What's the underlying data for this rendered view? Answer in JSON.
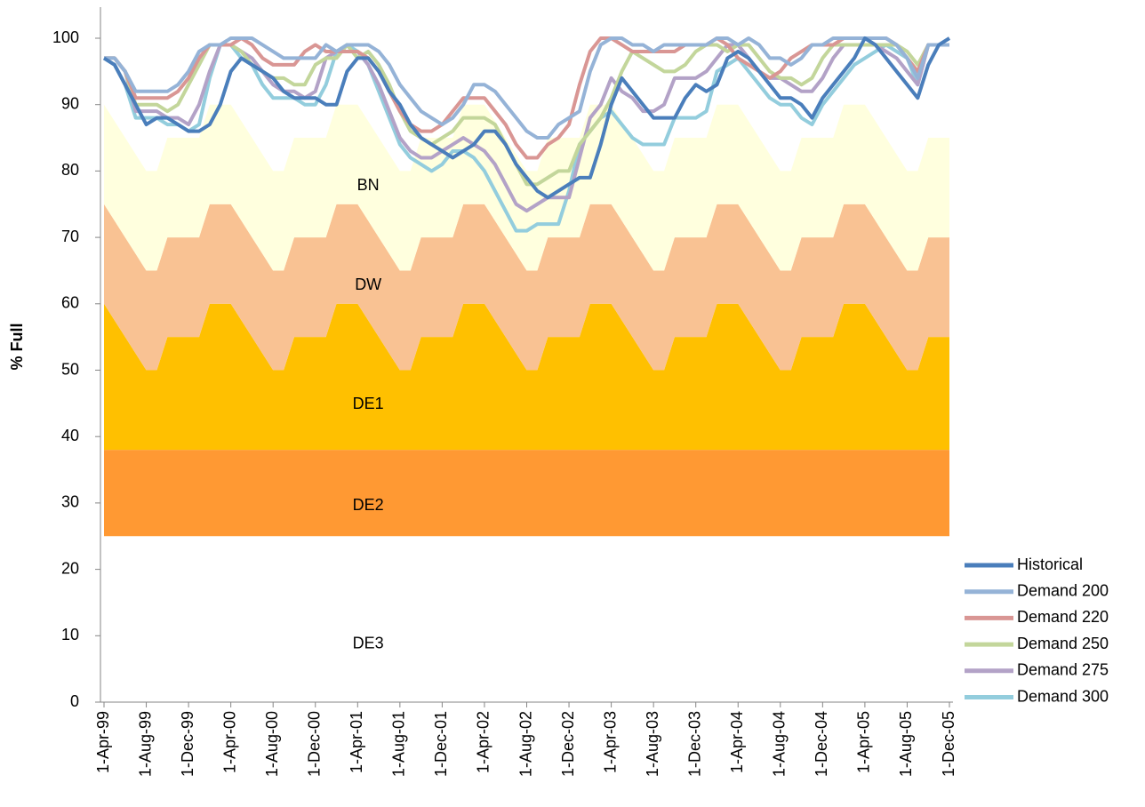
{
  "chart_data": {
    "type": "line",
    "ylabel": "% Full",
    "ylim": [
      0,
      100
    ],
    "yticks": [
      0,
      10,
      20,
      30,
      40,
      50,
      60,
      70,
      80,
      90,
      100
    ],
    "legend": "lower right",
    "categories": [
      "1-Apr-99",
      null,
      null,
      null,
      "1-Aug-99",
      null,
      null,
      null,
      "1-Dec-99",
      null,
      null,
      null,
      "1-Apr-00",
      null,
      null,
      null,
      "1-Aug-00",
      null,
      null,
      null,
      "1-Dec-00",
      null,
      null,
      null,
      "1-Apr-01",
      null,
      null,
      null,
      "1-Aug-01",
      null,
      null,
      null,
      "1-Dec-01",
      null,
      null,
      null,
      "1-Apr-02",
      null,
      null,
      null,
      "1-Aug-02",
      null,
      null,
      null,
      "1-Dec-02",
      null,
      null,
      null,
      "1-Apr-03",
      null,
      null,
      null,
      "1-Aug-03",
      null,
      null,
      null,
      "1-Dec-03",
      null,
      null,
      null,
      "1-Apr-04",
      null,
      null,
      null,
      "1-Aug-04",
      null,
      null,
      null,
      "1-Dec-04",
      null,
      null,
      null,
      "1-Apr-05",
      null,
      null,
      null,
      "1-Aug-05",
      null,
      null,
      null,
      "1-Dec-05"
    ],
    "bands": [
      {
        "name": "DE3",
        "color": "#ffffff",
        "values": [
          25,
          25,
          25,
          25,
          25,
          25,
          25,
          25,
          25,
          25,
          25,
          25,
          25,
          25,
          25,
          25,
          25,
          25,
          25,
          25,
          25,
          25,
          25,
          25,
          25,
          25,
          25,
          25,
          25,
          25,
          25,
          25,
          25,
          25,
          25,
          25,
          25,
          25,
          25,
          25,
          25,
          25,
          25,
          25,
          25,
          25,
          25,
          25,
          25,
          25,
          25,
          25,
          25,
          25,
          25,
          25,
          25,
          25,
          25,
          25,
          25,
          25,
          25,
          25,
          25,
          25,
          25,
          25,
          25,
          25,
          25,
          25,
          25,
          25,
          25,
          25,
          25,
          25,
          25,
          25,
          25
        ]
      },
      {
        "name": "DE2",
        "color": "#ff9933",
        "values": [
          13,
          13,
          13,
          13,
          13,
          13,
          13,
          13,
          13,
          13,
          13,
          13,
          13,
          13,
          13,
          13,
          13,
          13,
          13,
          13,
          13,
          13,
          13,
          13,
          13,
          13,
          13,
          13,
          13,
          13,
          13,
          13,
          13,
          13,
          13,
          13,
          13,
          13,
          13,
          13,
          13,
          13,
          13,
          13,
          13,
          13,
          13,
          13,
          13,
          13,
          13,
          13,
          13,
          13,
          13,
          13,
          13,
          13,
          13,
          13,
          13,
          13,
          13,
          13,
          13,
          13,
          13,
          13,
          13,
          13,
          13,
          13,
          13,
          13,
          13,
          13,
          13,
          13,
          13,
          13,
          13
        ]
      },
      {
        "name": "DE1",
        "color": "#ffc000",
        "values": [
          22,
          19.5,
          17,
          14.5,
          12,
          12,
          17,
          17,
          17,
          17,
          22,
          22,
          22,
          19.5,
          17,
          14.5,
          12,
          12,
          17,
          17,
          17,
          17,
          22,
          22,
          22,
          19.5,
          17,
          14.5,
          12,
          12,
          17,
          17,
          17,
          17,
          22,
          22,
          22,
          19.5,
          17,
          14.5,
          12,
          12,
          17,
          17,
          17,
          17,
          22,
          22,
          22,
          19.5,
          17,
          14.5,
          12,
          12,
          17,
          17,
          17,
          17,
          22,
          22,
          22,
          19.5,
          17,
          14.5,
          12,
          12,
          17,
          17,
          17,
          17,
          22,
          22,
          22,
          19.5,
          17,
          14.5,
          12,
          12,
          17,
          17,
          17
        ]
      },
      {
        "name": "DW",
        "color": "#f9c293",
        "values": [
          15,
          15,
          15,
          15,
          15,
          15,
          15,
          15,
          15,
          15,
          15,
          15,
          15,
          15,
          15,
          15,
          15,
          15,
          15,
          15,
          15,
          15,
          15,
          15,
          15,
          15,
          15,
          15,
          15,
          15,
          15,
          15,
          15,
          15,
          15,
          15,
          15,
          15,
          15,
          15,
          15,
          15,
          15,
          15,
          15,
          15,
          15,
          15,
          15,
          15,
          15,
          15,
          15,
          15,
          15,
          15,
          15,
          15,
          15,
          15,
          15,
          15,
          15,
          15,
          15,
          15,
          15,
          15,
          15,
          15,
          15,
          15,
          15,
          15,
          15,
          15,
          15,
          15,
          15,
          15,
          15
        ]
      },
      {
        "name": "BN",
        "color": "#ffffde",
        "values": [
          15,
          15,
          15,
          15,
          15,
          15,
          15,
          15,
          15,
          15,
          15,
          15,
          15,
          15,
          15,
          15,
          15,
          15,
          15,
          15,
          15,
          15,
          15,
          15,
          15,
          15,
          15,
          15,
          15,
          15,
          15,
          15,
          15,
          15,
          15,
          15,
          15,
          15,
          15,
          15,
          15,
          15,
          15,
          15,
          15,
          15,
          15,
          15,
          15,
          15,
          15,
          15,
          15,
          15,
          15,
          15,
          15,
          15,
          15,
          15,
          15,
          15,
          15,
          15,
          15,
          15,
          15,
          15,
          15,
          15,
          15,
          15,
          15,
          15,
          15,
          15,
          15,
          15,
          15,
          15,
          15
        ]
      }
    ],
    "series": [
      {
        "name": "Historical",
        "color": "#4a7ebb",
        "values": [
          97,
          96,
          93,
          90,
          87,
          88,
          88,
          87,
          86,
          86,
          87,
          90,
          95,
          97,
          96,
          95,
          94,
          92,
          91,
          91,
          91,
          90,
          90,
          95,
          97,
          97,
          95,
          92,
          90,
          87,
          85,
          84,
          83,
          82,
          83,
          84,
          86,
          86,
          84,
          81,
          79,
          77,
          76,
          77,
          78,
          79,
          79,
          84,
          90,
          94,
          92,
          90,
          88,
          88,
          88,
          91,
          93,
          92,
          93,
          97,
          98,
          97,
          95,
          93,
          91,
          91,
          90,
          88,
          91,
          93,
          95,
          97,
          100,
          99,
          97,
          95,
          93,
          91,
          96,
          99,
          100
        ]
      },
      {
        "name": "Demand 200",
        "color": "#95b3d7",
        "values": [
          97,
          97,
          95,
          92,
          92,
          92,
          92,
          93,
          95,
          98,
          99,
          99,
          100,
          100,
          100,
          99,
          98,
          97,
          97,
          97,
          97,
          99,
          98,
          99,
          99,
          99,
          98,
          96,
          93,
          91,
          89,
          88,
          87,
          88,
          90,
          93,
          93,
          92,
          90,
          88,
          86,
          85,
          85,
          87,
          88,
          89,
          95,
          99,
          100,
          100,
          99,
          99,
          98,
          99,
          99,
          99,
          99,
          99,
          100,
          100,
          99,
          100,
          99,
          97,
          97,
          96,
          97,
          99,
          99,
          100,
          100,
          100,
          100,
          100,
          100,
          99,
          97,
          94,
          99,
          99,
          99
        ]
      },
      {
        "name": "Demand 220",
        "color": "#d99694",
        "values": [
          97,
          97,
          95,
          91,
          91,
          91,
          91,
          92,
          94,
          97,
          99,
          99,
          99,
          100,
          99,
          97,
          96,
          96,
          96,
          98,
          99,
          98,
          98,
          98,
          98,
          97,
          95,
          92,
          89,
          87,
          86,
          86,
          87,
          89,
          91,
          91,
          91,
          89,
          87,
          84,
          82,
          82,
          84,
          85,
          87,
          93,
          98,
          100,
          100,
          99,
          98,
          98,
          98,
          98,
          98,
          99,
          99,
          99,
          100,
          99,
          97,
          96,
          95,
          94,
          95,
          97,
          98,
          99,
          99,
          99,
          100,
          100,
          100,
          100,
          100,
          99,
          97,
          95,
          99,
          99,
          99
        ]
      },
      {
        "name": "Demand 250",
        "color": "#c3d69b",
        "values": [
          97,
          97,
          95,
          90,
          90,
          90,
          89,
          90,
          93,
          96,
          99,
          99,
          99,
          98,
          96,
          95,
          94,
          94,
          93,
          93,
          96,
          97,
          97,
          99,
          97,
          98,
          96,
          93,
          89,
          86,
          85,
          84,
          85,
          86,
          88,
          88,
          88,
          87,
          84,
          81,
          78,
          78,
          79,
          80,
          80,
          84,
          86,
          88,
          91,
          95,
          98,
          97,
          96,
          95,
          95,
          96,
          98,
          99,
          99,
          98,
          99,
          99,
          97,
          95,
          94,
          94,
          93,
          94,
          97,
          99,
          99,
          99,
          99,
          99,
          99,
          99,
          98,
          96,
          99,
          99,
          99
        ]
      },
      {
        "name": "Demand 275",
        "color": "#b3a2c7",
        "values": [
          97,
          97,
          95,
          89,
          89,
          89,
          88,
          88,
          87,
          90,
          95,
          99,
          99,
          98,
          97,
          95,
          93,
          92,
          92,
          91,
          92,
          97,
          98,
          98,
          98,
          96,
          93,
          89,
          85,
          83,
          82,
          82,
          83,
          84,
          85,
          84,
          83,
          81,
          78,
          75,
          74,
          75,
          76,
          76,
          76,
          82,
          88,
          90,
          94,
          92,
          91,
          89,
          89,
          90,
          94,
          94,
          94,
          95,
          97,
          99,
          99,
          97,
          95,
          94,
          94,
          93,
          92,
          92,
          94,
          97,
          99,
          99,
          99,
          99,
          98,
          97,
          95,
          93,
          99,
          99,
          99
        ]
      },
      {
        "name": "Demand 300",
        "color": "#93cddd",
        "values": [
          97,
          96,
          93,
          88,
          88,
          88,
          87,
          87,
          86,
          87,
          94,
          99,
          99,
          97,
          96,
          93,
          91,
          91,
          91,
          90,
          90,
          93,
          98,
          99,
          98,
          96,
          92,
          88,
          84,
          82,
          81,
          80,
          81,
          83,
          83,
          82,
          80,
          77,
          74,
          71,
          71,
          72,
          72,
          72,
          77,
          84,
          86,
          88,
          89,
          87,
          85,
          84,
          84,
          84,
          88,
          88,
          88,
          89,
          95,
          96,
          97,
          95,
          93,
          91,
          90,
          90,
          88,
          87,
          90,
          92,
          94,
          96,
          97,
          98,
          99,
          98,
          97,
          93,
          99,
          99,
          99
        ]
      }
    ]
  }
}
